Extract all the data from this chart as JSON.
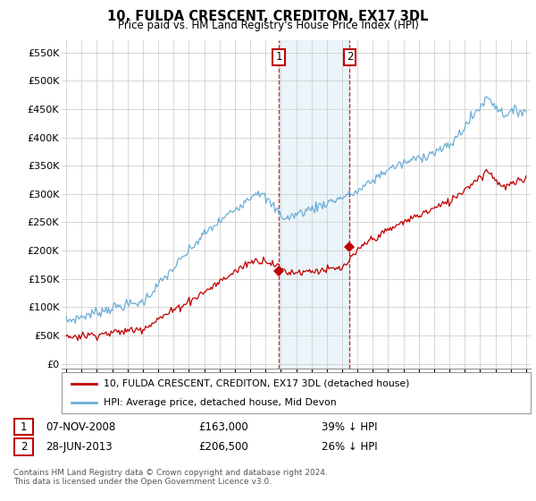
{
  "title": "10, FULDA CRESCENT, CREDITON, EX17 3DL",
  "subtitle": "Price paid vs. HM Land Registry's House Price Index (HPI)",
  "yticks": [
    0,
    50000,
    100000,
    150000,
    200000,
    250000,
    300000,
    350000,
    400000,
    450000,
    500000,
    550000
  ],
  "ytick_labels": [
    "£0",
    "£50K",
    "£100K",
    "£150K",
    "£200K",
    "£250K",
    "£300K",
    "£350K",
    "£400K",
    "£450K",
    "£500K",
    "£550K"
  ],
  "xlim_start": 1994.7,
  "xlim_end": 2025.3,
  "ylim_min": -8000,
  "ylim_max": 572000,
  "hpi_color": "#6baed6",
  "price_color": "#c00000",
  "sale1_date": 2008.86,
  "sale1_price": 163000,
  "sale1_label": "1",
  "sale2_date": 2013.49,
  "sale2_price": 206500,
  "sale2_label": "2",
  "shade_start": 2008.86,
  "shade_end": 2013.49,
  "footnote": "Contains HM Land Registry data © Crown copyright and database right 2024.\nThis data is licensed under the Open Government Licence v3.0.",
  "legend_line1": "10, FULDA CRESCENT, CREDITON, EX17 3DL (detached house)",
  "legend_line2": "HPI: Average price, detached house, Mid Devon",
  "table_row1": [
    "1",
    "07-NOV-2008",
    "£163,000",
    "39% ↓ HPI"
  ],
  "table_row2": [
    "2",
    "28-JUN-2013",
    "£206,500",
    "26% ↓ HPI"
  ]
}
